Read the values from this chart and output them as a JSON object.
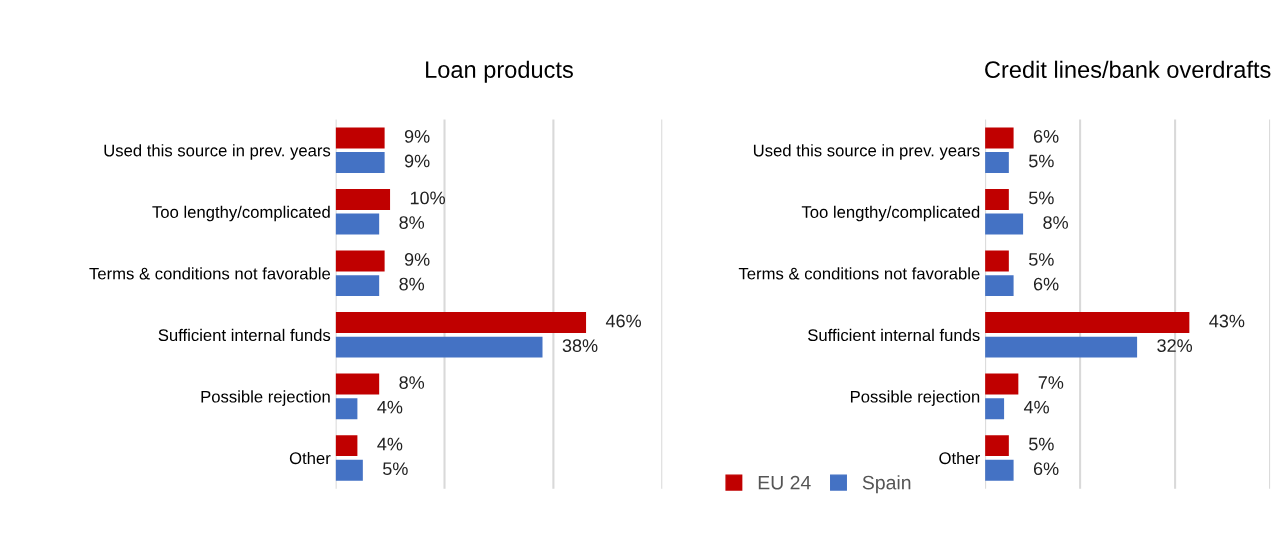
{
  "chart_data": [
    {
      "type": "bar",
      "orientation": "horizontal",
      "title": "Loan products",
      "categories": [
        "Used this source in prev. years",
        "Too lengthy/complicated",
        "Terms & conditions not favorable",
        "Sufficient internal funds",
        "Possible rejection",
        "Other"
      ],
      "series": [
        {
          "color": "#c00000",
          "values": [
            9,
            10,
            9,
            46,
            8,
            4
          ],
          "value_labels": [
            "9%",
            "10%",
            "9%",
            "46%",
            "8%",
            "4%"
          ]
        },
        {
          "color": "#4472c4",
          "values": [
            9,
            8,
            8,
            38,
            4,
            5
          ],
          "value_labels": [
            "9%",
            "8%",
            "8%",
            "38%",
            "4%",
            "5%"
          ]
        }
      ],
      "xlim": [
        0,
        60
      ],
      "xticks": [
        {
          "value": 0,
          "label": null
        },
        {
          "value": 20,
          "label": null
        },
        {
          "value": 40,
          "label": null
        },
        {
          "value": 60,
          "label": null
        }
      ],
      "grid": "x",
      "legend": false
    },
    {
      "type": "bar",
      "orientation": "horizontal",
      "title": "Credit lines/bank overdrafts",
      "categories": [
        "Used this source in prev. years",
        "Too lengthy/complicated",
        "Terms & conditions not favorable",
        "Sufficient internal funds",
        "Possible rejection",
        "Other"
      ],
      "series": [
        {
          "name": "EU 24",
          "color": "#c00000",
          "values": [
            6,
            5,
            5,
            43,
            7,
            5
          ],
          "value_labels": [
            "6%",
            "5%",
            "5%",
            "43%",
            "7%",
            "5%"
          ]
        },
        {
          "name": "Spain",
          "color": "#4472c4",
          "values": [
            5,
            8,
            6,
            32,
            4,
            6
          ],
          "value_labels": [
            "5%",
            "8%",
            "6%",
            "32%",
            "4%",
            "6%"
          ]
        }
      ],
      "xlim": [
        0,
        60
      ],
      "xticks": [
        {
          "value": 0,
          "label": null
        },
        {
          "value": 20,
          "label": null
        },
        {
          "value": 40,
          "label": null
        },
        {
          "value": 60,
          "label": null
        }
      ],
      "grid": "x",
      "legend": "bottom left"
    }
  ]
}
